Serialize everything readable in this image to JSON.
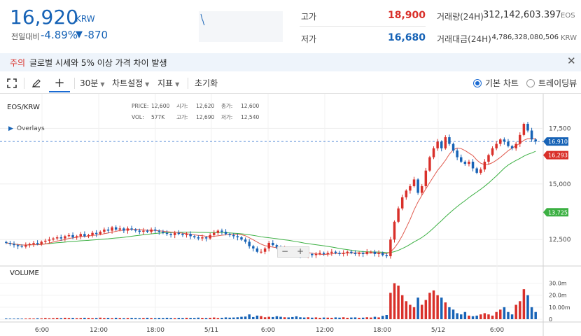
{
  "header": {
    "price": "16,920",
    "currency": "KRW",
    "change_label": "전일대비",
    "change_pct": "-4.89%",
    "change_arrow": "▼",
    "change_abs": "-870",
    "high_label": "고가",
    "high_value": "18,900",
    "low_label": "저가",
    "low_value": "16,680",
    "volume_label": "거래량(24H)",
    "volume_value": "312,142,603.397",
    "volume_unit": "EOS",
    "amount_label": "거래대금(24H)",
    "amount_value": "4,786,328,080,506",
    "amount_unit": "KRW",
    "colors": {
      "down": "#1763b6",
      "up": "#d9302a"
    }
  },
  "notice": {
    "tag": "주의",
    "text": "글로벌 시세와 5% 이상 가격 차이 발생",
    "close_icon": "close-icon"
  },
  "toolbar": {
    "fullscreen_icon": "fullscreen-icon",
    "draw_icon": "pencil-icon",
    "crosshair_icon": "crosshair-icon",
    "interval": "30분",
    "settings": "차트설정",
    "indicators": "지표",
    "reset": "초기화",
    "basic_chart": "기본 차트",
    "tradingview": "트레이딩뷰",
    "selected_chart": "기본 차트"
  },
  "chart_data": {
    "type": "candlestick",
    "symbol": "EOS/KRW",
    "overlays_label": "Overlays",
    "info": {
      "price_label": "PRICE:",
      "price": "12,600",
      "open_label": "시가:",
      "open": "12,620",
      "close_label": "종가:",
      "close": "12,600",
      "vol_label": "VOL:",
      "vol": "577K",
      "high_label": "고가:",
      "high": "12,690",
      "low_label": "저가:",
      "low": "12,540"
    },
    "y_ticks": [
      "17,500",
      "15,000",
      "12,500"
    ],
    "y_tick_values": [
      17500,
      15000,
      12500
    ],
    "ylim": [
      11500,
      18800
    ],
    "x_ticks": [
      "6:00",
      "12:00",
      "18:00",
      "5/11",
      "6:00",
      "12:00",
      "18:00",
      "5/12",
      "6:00"
    ],
    "price_tags": [
      {
        "label": "16,910",
        "value": 16910,
        "color": "#1763b6"
      },
      {
        "label": "16,293",
        "value": 16293,
        "color": "#d9302a"
      },
      {
        "label": "13,725",
        "value": 13725,
        "color": "#3cb043"
      }
    ],
    "current_price_line": 16910,
    "volume_label": "VOLUME",
    "volume_ticks": [
      "30.0m",
      "20.0m",
      "10.00m",
      "0"
    ],
    "volume_tick_values": [
      30,
      20,
      10,
      0
    ],
    "volume_max": 35,
    "ma_colors": {
      "short": "#e05a4e",
      "long": "#3cb043"
    },
    "candle_colors": {
      "up": "#d9302a",
      "down": "#1763b6"
    },
    "closes": [
      12350,
      12300,
      12250,
      12200,
      12180,
      12250,
      12300,
      12350,
      12300,
      12400,
      12450,
      12500,
      12550,
      12600,
      12550,
      12650,
      12700,
      12600,
      12650,
      12750,
      12650,
      12700,
      12800,
      12750,
      12850,
      12950,
      12900,
      13050,
      12950,
      13000,
      12900,
      13000,
      12950,
      12900,
      12850,
      12900,
      12850,
      12950,
      12900,
      12850,
      12800,
      12750,
      12700,
      12800,
      12750,
      12700,
      12750,
      12650,
      12600,
      12550,
      12600,
      12550,
      12700,
      12800,
      12900,
      12850,
      12750,
      12700,
      12650,
      12600,
      12500,
      12400,
      12200,
      12100,
      11950,
      11950,
      12100,
      12350,
      12250,
      12150,
      12000,
      12100,
      12050,
      11900,
      11850,
      11800,
      11750,
      11850,
      11800,
      11850,
      11900,
      11850,
      11900,
      11950,
      11900,
      11850,
      11900,
      11950,
      11900,
      11850,
      11900,
      11850,
      11950,
      11950,
      11850,
      11900,
      11800,
      11750,
      12500,
      13300,
      13900,
      14400,
      14700,
      14900,
      15200,
      14600,
      14900,
      15600,
      16200,
      16600,
      16900,
      16600,
      17100,
      16800,
      16500,
      16200,
      16000,
      15900,
      16000,
      15700,
      15500,
      15650,
      16000,
      16300,
      16600,
      16800,
      17000,
      16900,
      16700,
      16600,
      16800,
      17200,
      17700,
      17400,
      17000,
      16910
    ],
    "volumes": [
      0.6,
      0.5,
      0.5,
      0.6,
      0.5,
      0.6,
      0.7,
      0.6,
      0.8,
      0.7,
      1.0,
      0.8,
      0.9,
      1.1,
      0.9,
      1.2,
      1.0,
      1.1,
      0.9,
      1.0,
      1.2,
      1.1,
      0.9,
      1.0,
      1.3,
      1.0,
      1.1,
      0.9,
      1.2,
      1.0,
      0.9,
      1.0,
      1.1,
      1.0,
      0.9,
      1.0,
      1.2,
      1.0,
      0.9,
      1.1,
      1.0,
      1.2,
      1.0,
      0.9,
      1.1,
      1.0,
      1.2,
      1.1,
      1.0,
      1.3,
      1.1,
      1.0,
      1.2,
      1.4,
      1.0,
      1.2,
      1.5,
      1.3,
      1.4,
      1.6,
      2.0,
      2.2,
      4.0,
      1.8,
      3.0,
      2.6,
      1.6,
      2.0,
      1.8,
      2.5,
      2.0,
      1.6,
      1.5,
      1.8,
      2.4,
      1.6,
      1.4,
      1.6,
      1.3,
      1.5,
      1.2,
      1.4,
      1.3,
      1.2,
      1.5,
      1.3,
      1.6,
      1.2,
      1.4,
      1.5,
      1.2,
      1.3,
      1.6,
      1.4,
      2.0,
      1.5,
      2.8,
      3.5,
      22,
      30,
      28,
      20,
      15,
      12,
      10,
      18,
      12,
      16,
      22,
      24,
      20,
      18,
      14,
      10,
      8,
      5,
      4,
      6,
      3,
      2.5,
      3,
      4,
      5,
      4,
      3,
      6,
      8,
      10,
      6,
      4,
      12,
      15,
      25,
      20,
      10,
      6
    ]
  }
}
